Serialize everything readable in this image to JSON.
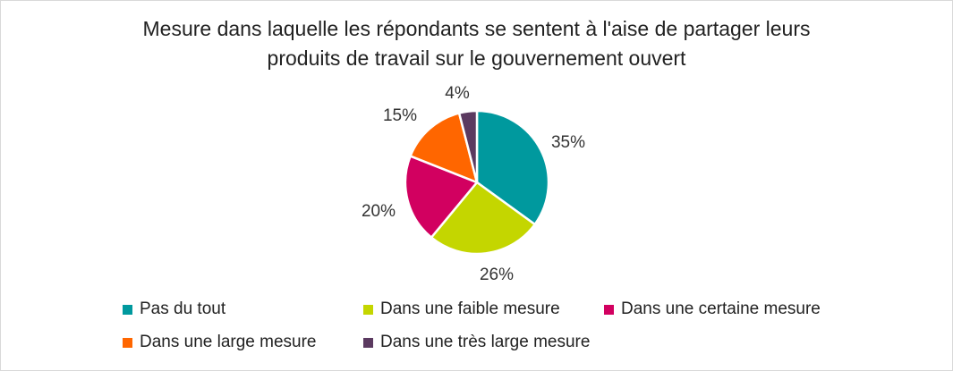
{
  "chart_data": {
    "type": "pie",
    "title_lines": [
      "Mesure dans laquelle les répondants se sentent à l'aise de partager leurs",
      "produits de travail sur le gouvernement ouvert"
    ],
    "slices": [
      {
        "name": "Pas du tout",
        "value": 35,
        "label": "35%",
        "color": "#00999E"
      },
      {
        "name": "Dans une faible mesure",
        "value": 26,
        "label": "26%",
        "color": "#C4D600"
      },
      {
        "name": "Dans une certaine mesure",
        "value": 20,
        "label": "20%",
        "color": "#D20060"
      },
      {
        "name": "Dans une large mesure",
        "value": 15,
        "label": "15%",
        "color": "#FF6600"
      },
      {
        "name": "Dans une très large mesure",
        "value": 4,
        "label": "4%",
        "color": "#5B3A60"
      }
    ],
    "legend_position": "bottom"
  }
}
